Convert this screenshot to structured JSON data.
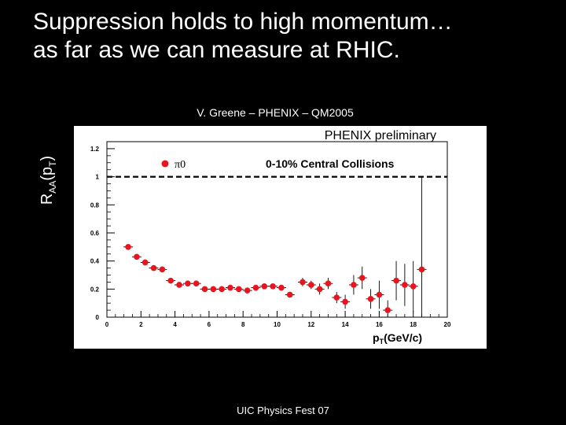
{
  "slide": {
    "title_line1": "Suppression holds to high momentum…",
    "title_line2": "as far as we can measure at RHIC.",
    "credit": "V. Greene – PHENIX – QM2005",
    "footer": "UIC Physics Fest 07"
  },
  "chart_data": {
    "type": "scatter",
    "annotation_top": "PHENIX preliminary",
    "annotation_centrality": "0-10% Central Collisions",
    "ylabel_main": "R",
    "ylabel_sub": "AA",
    "ylabel_tail": "(p",
    "ylabel_sub2": "T",
    "ylabel_close": ")",
    "xlabel_main": "p",
    "xlabel_sub": "T",
    "xlabel_tail": "(GeV/c)",
    "xlim": [
      0,
      20
    ],
    "ylim": [
      0,
      1.25
    ],
    "x_ticks": [
      "0",
      "2",
      "4",
      "6",
      "8",
      "10",
      "12",
      "14",
      "16",
      "18",
      "20"
    ],
    "y_ticks": [
      "0",
      "0.2",
      "0.4",
      "0.6",
      "0.8",
      "1",
      "1.2"
    ],
    "reference_line": 1.0,
    "marker_color": "#e8141e",
    "series": [
      {
        "name": "π0",
        "points": [
          {
            "x": 1.25,
            "y": 0.5,
            "err": 0.02
          },
          {
            "x": 1.75,
            "y": 0.43,
            "err": 0.02
          },
          {
            "x": 2.25,
            "y": 0.39,
            "err": 0.02
          },
          {
            "x": 2.75,
            "y": 0.35,
            "err": 0.02
          },
          {
            "x": 3.25,
            "y": 0.34,
            "err": 0.02
          },
          {
            "x": 3.75,
            "y": 0.26,
            "err": 0.02
          },
          {
            "x": 4.25,
            "y": 0.23,
            "err": 0.02
          },
          {
            "x": 4.75,
            "y": 0.24,
            "err": 0.02
          },
          {
            "x": 5.25,
            "y": 0.24,
            "err": 0.02
          },
          {
            "x": 5.75,
            "y": 0.2,
            "err": 0.02
          },
          {
            "x": 6.25,
            "y": 0.2,
            "err": 0.02
          },
          {
            "x": 6.75,
            "y": 0.2,
            "err": 0.02
          },
          {
            "x": 7.25,
            "y": 0.21,
            "err": 0.02
          },
          {
            "x": 7.75,
            "y": 0.2,
            "err": 0.02
          },
          {
            "x": 8.25,
            "y": 0.19,
            "err": 0.02
          },
          {
            "x": 8.75,
            "y": 0.21,
            "err": 0.02
          },
          {
            "x": 9.25,
            "y": 0.22,
            "err": 0.02
          },
          {
            "x": 9.75,
            "y": 0.22,
            "err": 0.02
          },
          {
            "x": 10.25,
            "y": 0.21,
            "err": 0.02
          },
          {
            "x": 10.75,
            "y": 0.16,
            "err": 0.02
          },
          {
            "x": 11.5,
            "y": 0.25,
            "err": 0.03
          },
          {
            "x": 12.0,
            "y": 0.23,
            "err": 0.03
          },
          {
            "x": 12.5,
            "y": 0.2,
            "err": 0.04
          },
          {
            "x": 13.0,
            "y": 0.24,
            "err": 0.04
          },
          {
            "x": 13.5,
            "y": 0.14,
            "err": 0.04
          },
          {
            "x": 14.0,
            "y": 0.11,
            "err": 0.05
          },
          {
            "x": 14.5,
            "y": 0.23,
            "err": 0.07
          },
          {
            "x": 15.0,
            "y": 0.28,
            "err": 0.08
          },
          {
            "x": 15.5,
            "y": 0.13,
            "err": 0.07
          },
          {
            "x": 16.0,
            "y": 0.16,
            "err": 0.1
          },
          {
            "x": 16.5,
            "y": 0.05,
            "err": 0.07
          },
          {
            "x": 17.0,
            "y": 0.26,
            "err": 0.14
          },
          {
            "x": 17.5,
            "y": 0.23,
            "err": 0.15
          },
          {
            "x": 18.0,
            "y": 0.22,
            "err": 0.18
          },
          {
            "x": 18.5,
            "y": 0.34,
            "err": 0.66
          }
        ]
      }
    ]
  }
}
